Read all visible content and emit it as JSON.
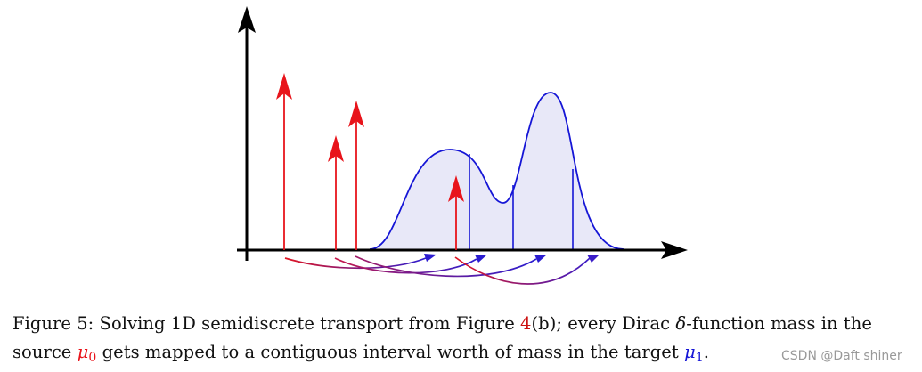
{
  "caption": {
    "line1": {
      "prefix": "Figure 5: Solving 1D semidiscrete transport from Figure ",
      "ref": "4",
      "middle": "(b); every Dirac ",
      "delta": "δ",
      "suffix": "-function mass in the"
    },
    "line2": {
      "prefix": "source ",
      "mu": "μ",
      "mu0_sub": "0",
      "middle": " gets mapped to a contiguous interval worth of mass in the target ",
      "mu1_sub": "1",
      "suffix": "."
    }
  },
  "watermark": "CSDN @Daft shiner",
  "colors": {
    "axis": "#000000",
    "source": "#e8141b",
    "target": "#1515d6",
    "target_fill": "#e8e8f8",
    "link": "#7a1a8a",
    "ref_link": "#cc1111",
    "text": "#111111"
  }
}
